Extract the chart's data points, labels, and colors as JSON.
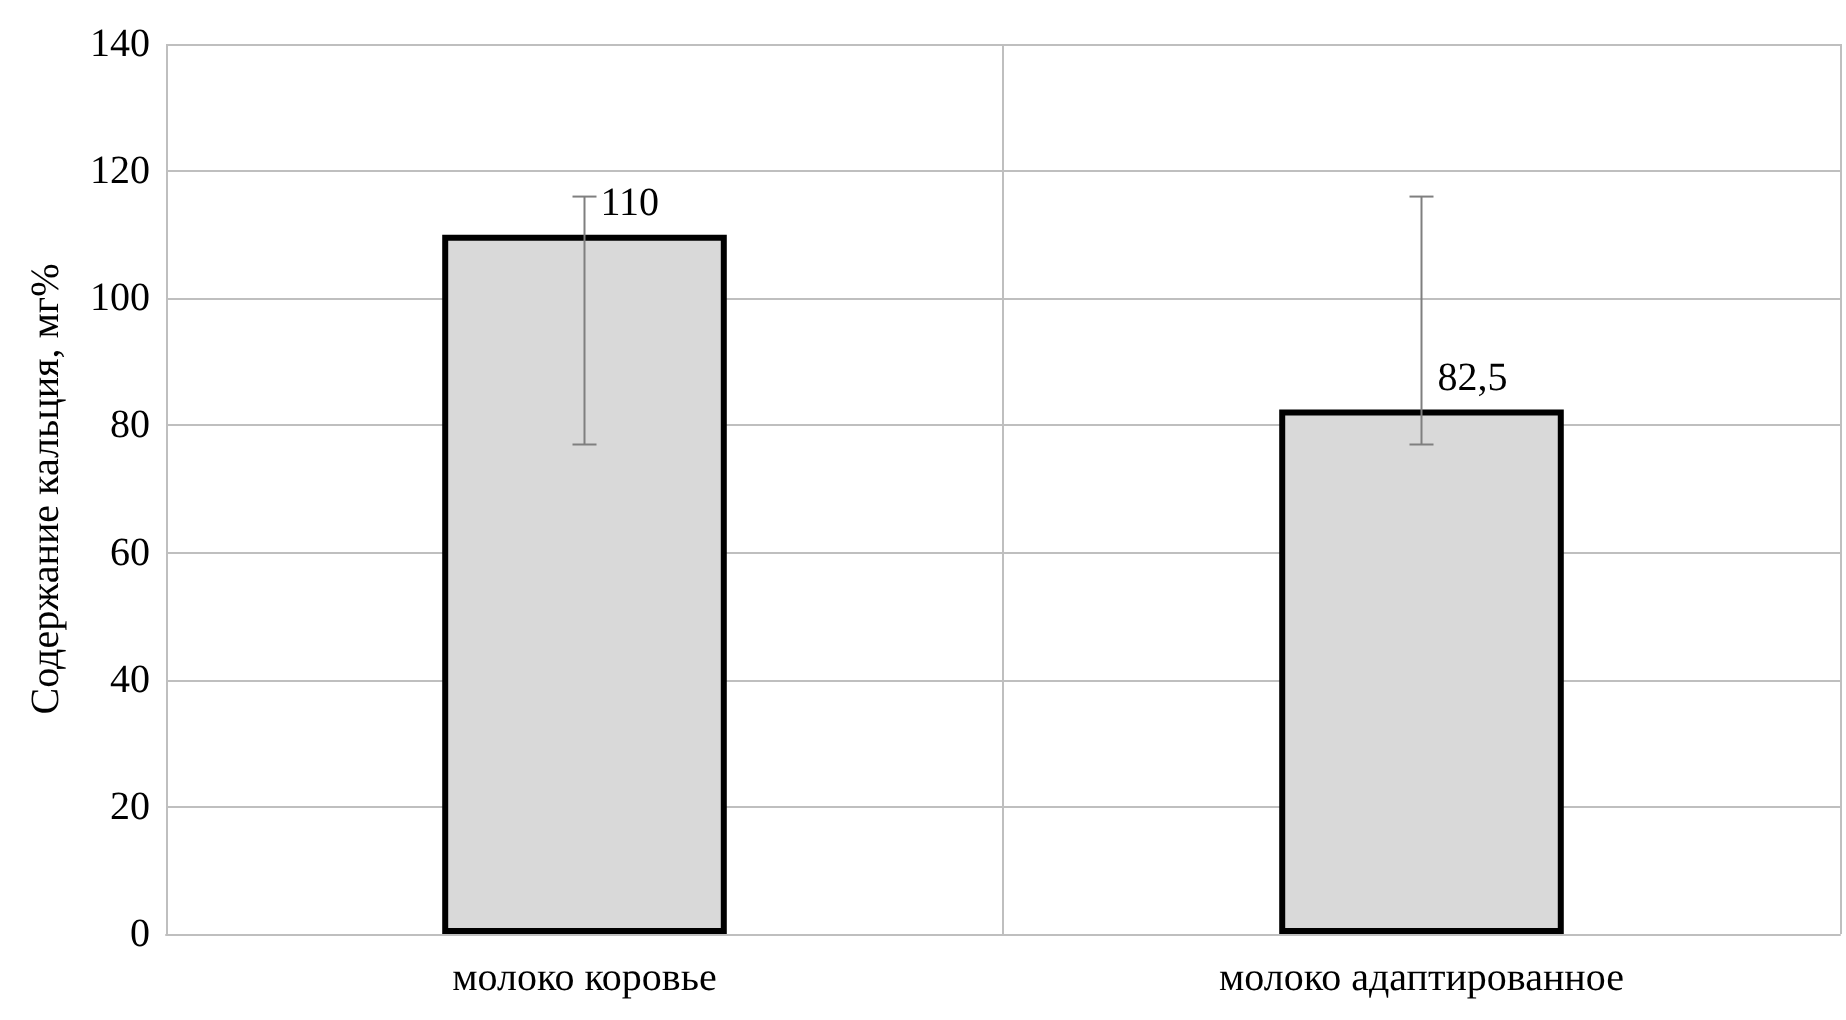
{
  "chart_data": {
    "type": "bar",
    "ylabel": "Содержание кальция, мг%",
    "categories": [
      "молоко коровье",
      "молоко адаптированное"
    ],
    "series": [
      {
        "color": "#d9d9d9",
        "values": [
          110,
          82.5
        ],
        "errors": [
          [
            77,
            116
          ],
          [
            77,
            116
          ]
        ],
        "value_labels": [
          "110",
          "82,5"
        ]
      }
    ],
    "ylim": [
      0,
      140
    ],
    "yticks": [
      0,
      20,
      40,
      60,
      80,
      100,
      120,
      140
    ],
    "grid": true
  }
}
